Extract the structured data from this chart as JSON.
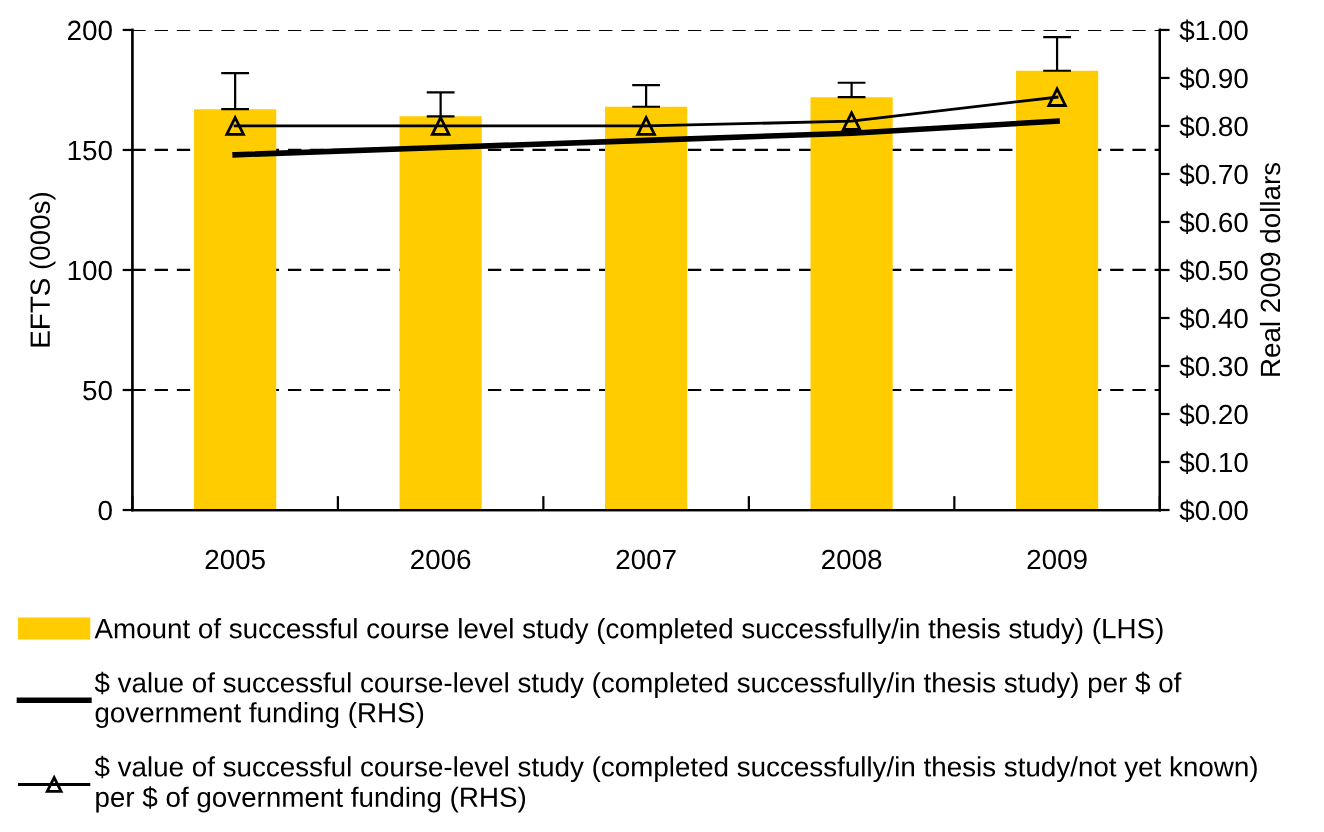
{
  "chart_data": {
    "type": "bar",
    "ylabel": "EFTS (000s)",
    "y2label": "Real 2009 dollars",
    "categories": [
      "2005",
      "2006",
      "2007",
      "2008",
      "2009"
    ],
    "series": [
      {
        "name": "Amount of successful course level study (completed successfully/in thesis study) (LHS)",
        "color": "#ffcc00",
        "values": [
          167,
          164,
          168,
          172,
          183
        ],
        "errors": [
          [
            167,
            182
          ],
          [
            164,
            174
          ],
          [
            168,
            177
          ],
          [
            172,
            178
          ],
          [
            183,
            197
          ]
        ]
      },
      {
        "name": "$ value of successful course-level study (completed successfully/in thesis study) per $ of government funding (RHS)",
        "type": "line",
        "axis": "y2",
        "color": "#000000",
        "marker": "none",
        "values": [
          0.74,
          0.755,
          0.77,
          0.785,
          0.81
        ]
      },
      {
        "name": "$ value of successful course-level study (completed successfully/in thesis study/not yet known) per $ of government funding (RHS)",
        "type": "line",
        "axis": "y2",
        "color": "#000000",
        "marker": "triangle",
        "values": [
          0.8,
          0.8,
          0.8,
          0.81,
          0.86
        ]
      }
    ],
    "ylim": [
      0,
      200
    ],
    "yticks": [
      0,
      50,
      100,
      150,
      200
    ],
    "y2lim": [
      0,
      1.0
    ],
    "y2ticks": [
      {
        "value": 0,
        "label": "$0.00"
      },
      {
        "value": 0.1,
        "label": "$0.10"
      },
      {
        "value": 0.2,
        "label": "$0.20"
      },
      {
        "value": 0.3,
        "label": "$0.30"
      },
      {
        "value": 0.4,
        "label": "$0.40"
      },
      {
        "value": 0.5,
        "label": "$0.50"
      },
      {
        "value": 0.6,
        "label": "$0.60"
      },
      {
        "value": 0.7,
        "label": "$0.70"
      },
      {
        "value": 0.8,
        "label": "$0.80"
      },
      {
        "value": 0.9,
        "label": "$0.90"
      },
      {
        "value": 1.0,
        "label": "$1.00"
      }
    ],
    "grid": "y",
    "legend": "bottom"
  }
}
